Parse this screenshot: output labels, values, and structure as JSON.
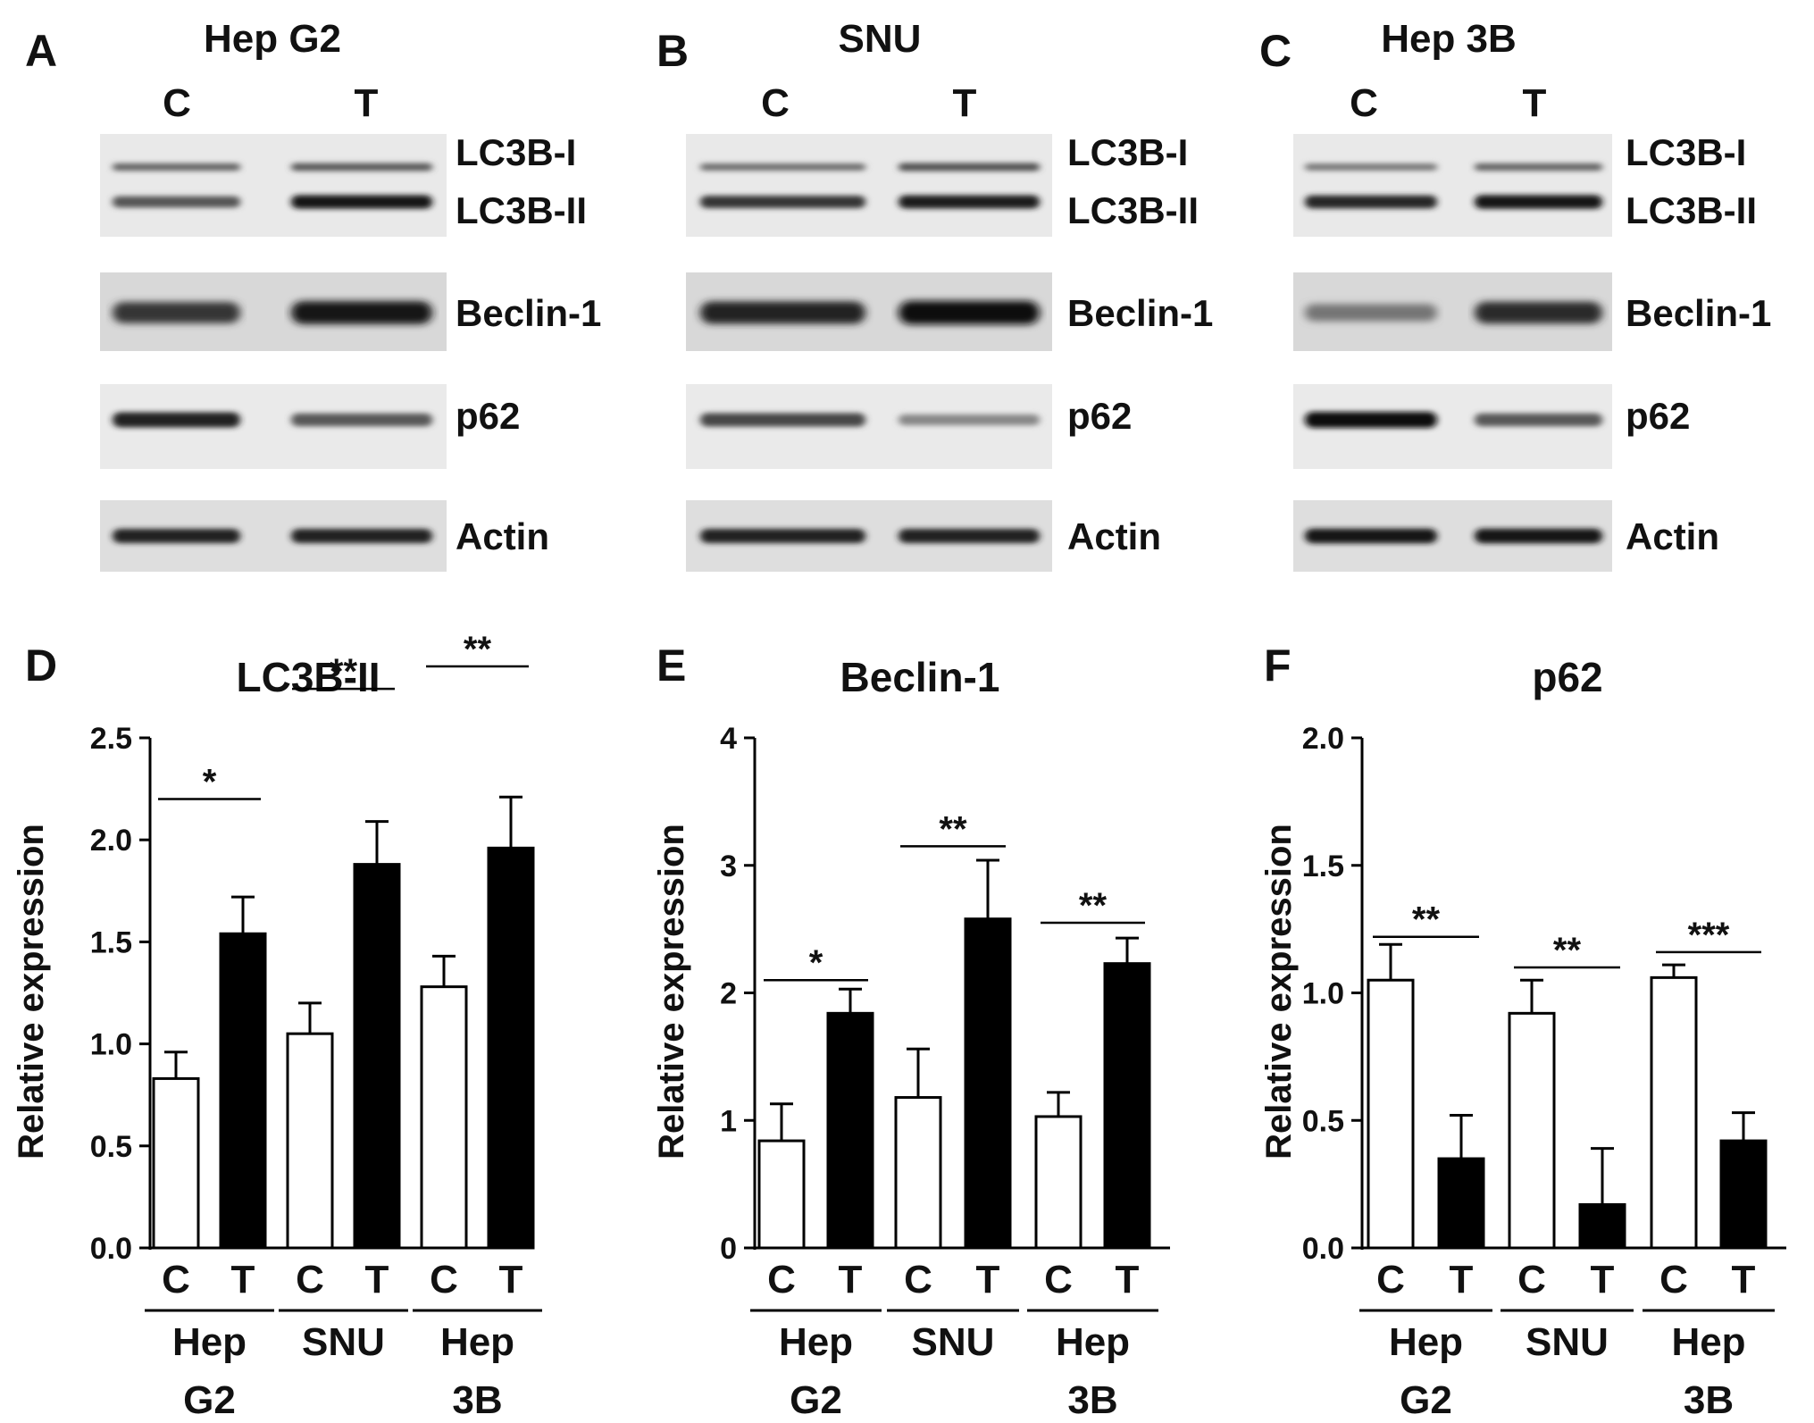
{
  "blots": [
    {
      "letter": "A",
      "title": "Hep G2",
      "lanes": [
        "C",
        "T"
      ],
      "proteins": [
        "LC3B-I",
        "LC3B-II",
        "Beclin-1",
        "p62",
        "Actin"
      ],
      "intensity": {
        "LC3B-I": [
          0.55,
          0.6
        ],
        "LC3B-II": [
          0.62,
          0.95
        ],
        "Beclin-1": [
          0.8,
          0.95
        ],
        "p62": [
          0.9,
          0.6
        ],
        "Actin": [
          0.9,
          0.9
        ]
      }
    },
    {
      "letter": "B",
      "title": "SNU",
      "lanes": [
        "C",
        "T"
      ],
      "proteins": [
        "LC3B-I",
        "LC3B-II",
        "Beclin-1",
        "p62",
        "Actin"
      ],
      "intensity": {
        "LC3B-I": [
          0.5,
          0.65
        ],
        "LC3B-II": [
          0.8,
          0.92
        ],
        "Beclin-1": [
          0.9,
          1.0
        ],
        "p62": [
          0.7,
          0.35
        ],
        "Actin": [
          0.9,
          0.9
        ]
      }
    },
    {
      "letter": "C",
      "title": "Hep 3B",
      "lanes": [
        "C",
        "T"
      ],
      "proteins": [
        "LC3B-I",
        "LC3B-II",
        "Beclin-1",
        "p62",
        "Actin"
      ],
      "intensity": {
        "LC3B-I": [
          0.45,
          0.55
        ],
        "LC3B-II": [
          0.88,
          0.98
        ],
        "Beclin-1": [
          0.45,
          0.85
        ],
        "p62": [
          1.0,
          0.6
        ],
        "Actin": [
          0.95,
          0.95
        ]
      }
    }
  ],
  "chart_data": [
    {
      "type": "bar",
      "letter": "D",
      "title": "LC3B-II",
      "ylabel": "Relative expression",
      "ylim": [
        0,
        2.5
      ],
      "yticks": [
        "0.0",
        "0.5",
        "1.0",
        "1.5",
        "2.0",
        "2.5"
      ],
      "categories": [
        "C",
        "T",
        "C",
        "T",
        "C",
        "T"
      ],
      "groups": [
        [
          "Hep",
          "G2"
        ],
        [
          "SNU"
        ],
        [
          "Hep",
          "3B"
        ]
      ],
      "values": [
        0.83,
        1.54,
        1.05,
        1.88,
        1.28,
        1.96
      ],
      "errors": [
        0.13,
        0.18,
        0.15,
        0.21,
        0.15,
        0.25
      ],
      "fill": [
        "white",
        "black",
        "white",
        "black",
        "white",
        "black"
      ],
      "significance": [
        "*",
        "**",
        "**"
      ],
      "sig_levels": [
        2.2,
        2.74,
        2.85
      ]
    },
    {
      "type": "bar",
      "letter": "E",
      "title": "Beclin-1",
      "ylabel": "Relative expression",
      "ylim": [
        0,
        4
      ],
      "yticks": [
        "0",
        "1",
        "2",
        "3",
        "4"
      ],
      "categories": [
        "C",
        "T",
        "C",
        "T",
        "C",
        "T"
      ],
      "groups": [
        [
          "Hep",
          "G2"
        ],
        [
          "SNU"
        ],
        [
          "Hep",
          "3B"
        ]
      ],
      "values": [
        0.84,
        1.84,
        1.18,
        2.58,
        1.03,
        2.23
      ],
      "errors": [
        0.29,
        0.19,
        0.38,
        0.46,
        0.19,
        0.2
      ],
      "fill": [
        "white",
        "black",
        "white",
        "black",
        "white",
        "black"
      ],
      "significance": [
        "*",
        "**",
        "**"
      ],
      "sig_levels": [
        2.1,
        3.15,
        2.55
      ]
    },
    {
      "type": "bar",
      "letter": "F",
      "title": "p62",
      "ylabel": "Relative expression",
      "ylim": [
        0,
        2.0
      ],
      "yticks": [
        "0.0",
        "0.5",
        "1.0",
        "1.5",
        "2.0"
      ],
      "categories": [
        "C",
        "T",
        "C",
        "T",
        "C",
        "T"
      ],
      "groups": [
        [
          "Hep",
          "G2"
        ],
        [
          "SNU"
        ],
        [
          "Hep",
          "3B"
        ]
      ],
      "values": [
        1.05,
        0.35,
        0.92,
        0.17,
        1.06,
        0.42
      ],
      "errors": [
        0.14,
        0.17,
        0.13,
        0.22,
        0.05,
        0.11
      ],
      "fill": [
        "white",
        "black",
        "white",
        "black",
        "white",
        "black"
      ],
      "significance": [
        "**",
        "**",
        "***"
      ],
      "sig_levels": [
        1.22,
        1.1,
        1.16
      ]
    }
  ]
}
